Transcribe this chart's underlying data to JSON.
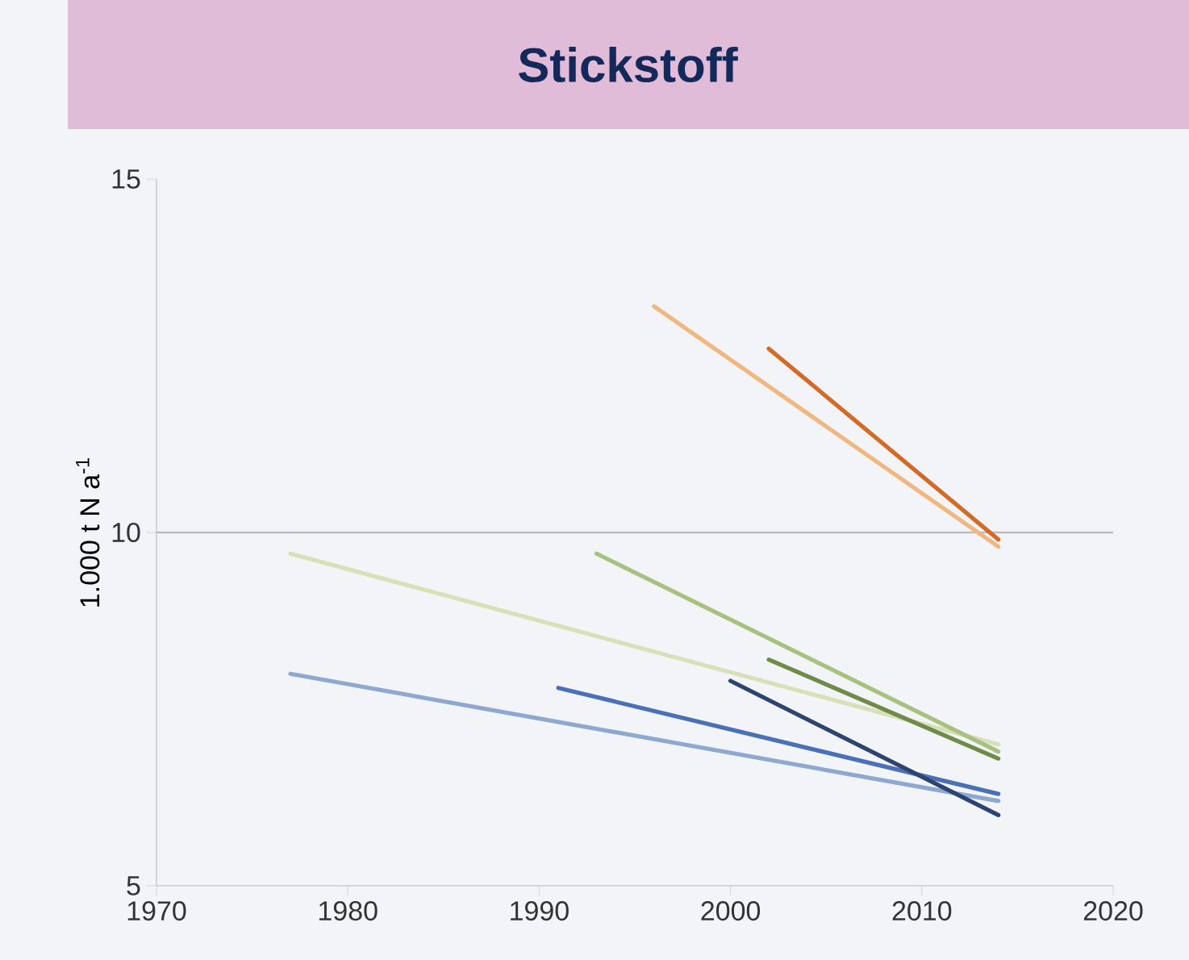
{
  "chart_data": {
    "type": "line",
    "title": "Stickstoff",
    "ylabel": "1.000 t N a$^{-1}$",
    "xlim": [
      1970,
      2020
    ],
    "xticks": [
      1970,
      1980,
      1990,
      2000,
      2010,
      2020
    ],
    "ylim": [
      5,
      15
    ],
    "yticks": [
      5,
      10,
      15
    ],
    "ref_lines": [
      {
        "axis": "y",
        "value": 10,
        "color": "#bbbbbb"
      }
    ],
    "grid": false,
    "marker": "none",
    "line_style": "solid",
    "series": [
      {
        "color": "#f0b880",
        "x": [
          1996,
          2014
        ],
        "values": [
          13.2,
          9.8
        ]
      },
      {
        "color": "#d46a28",
        "x": [
          2002,
          2014
        ],
        "values": [
          12.6,
          9.9
        ]
      },
      {
        "color": "#d8e0b8",
        "x": [
          1977,
          2014
        ],
        "values": [
          9.7,
          7.0
        ]
      },
      {
        "color": "#a8c080",
        "x": [
          1993,
          2014
        ],
        "values": [
          9.7,
          6.9
        ]
      },
      {
        "color": "#6e8c48",
        "x": [
          2002,
          2014
        ],
        "values": [
          8.2,
          6.8
        ]
      },
      {
        "color": "#8ea8d0",
        "x": [
          1977,
          2014
        ],
        "values": [
          8.0,
          6.2
        ]
      },
      {
        "color": "#4a70b8",
        "x": [
          1991,
          2014
        ],
        "values": [
          7.8,
          6.3
        ]
      },
      {
        "color": "#2e4470",
        "x": [
          2000,
          2014
        ],
        "values": [
          7.9,
          6.0
        ]
      }
    ]
  }
}
